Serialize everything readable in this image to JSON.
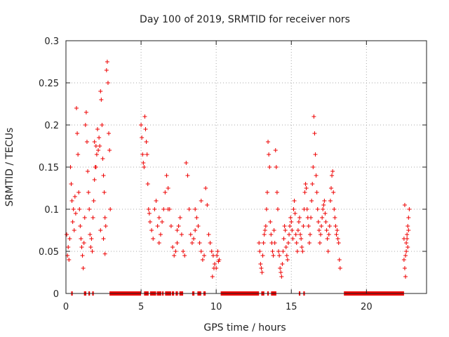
{
  "chart_data": {
    "type": "scatter",
    "title": "Day 100 of 2019, SRMTID for receiver nors",
    "xlabel": "GPS time / hours",
    "ylabel": "SRMTID / TECUs",
    "xlim": [
      0,
      24
    ],
    "ylim": [
      0,
      0.3
    ],
    "xticks": [
      0,
      5,
      10,
      15,
      20
    ],
    "xtick_labels": [
      "0",
      "5",
      "10",
      "15",
      "20"
    ],
    "yticks": [
      0,
      0.05,
      0.1,
      0.15,
      0.2,
      0.25,
      0.3
    ],
    "ytick_labels": [
      "0",
      "0.05",
      "0.1",
      "0.15",
      "0.2",
      "0.25",
      "0.3"
    ],
    "grid": true,
    "marker": "+",
    "marker_color": "#ee0000",
    "series": [
      {
        "name": "SRMTID",
        "color": "#ee0000",
        "points": [
          [
            0.05,
            0.07
          ],
          [
            0.1,
            0.045
          ],
          [
            0.15,
            0.055
          ],
          [
            0.2,
            0.04
          ],
          [
            0.25,
            0.065
          ],
          [
            0.3,
            0.15
          ],
          [
            0.35,
            0.13
          ],
          [
            0.4,
            0.11
          ],
          [
            0.45,
            0.085
          ],
          [
            0.5,
            0.1
          ],
          [
            0.55,
            0.075
          ],
          [
            0.6,
            0.115
          ],
          [
            0.65,
            0.095
          ],
          [
            0.7,
            0.22
          ],
          [
            0.75,
            0.19
          ],
          [
            0.8,
            0.165
          ],
          [
            0.85,
            0.12
          ],
          [
            0.9,
            0.1
          ],
          [
            0.95,
            0.08
          ],
          [
            1.0,
            0.065
          ],
          [
            1.05,
            0.055
          ],
          [
            1.1,
            0.045
          ],
          [
            1.15,
            0.03
          ],
          [
            1.2,
            0.06
          ],
          [
            1.25,
            0.09
          ],
          [
            1.3,
            0.2
          ],
          [
            1.35,
            0.215
          ],
          [
            1.4,
            0.18
          ],
          [
            1.45,
            0.145
          ],
          [
            1.5,
            0.12
          ],
          [
            1.55,
            0.1
          ],
          [
            1.6,
            0.07
          ],
          [
            1.65,
            0.055
          ],
          [
            1.7,
            0.065
          ],
          [
            1.75,
            0.05
          ],
          [
            1.8,
            0.09
          ],
          [
            1.85,
            0.11
          ],
          [
            1.9,
            0.135
          ],
          [
            1.95,
            0.15
          ],
          [
            2.0,
            0.175
          ],
          [
            2.05,
            0.165
          ],
          [
            2.1,
            0.195
          ],
          [
            2.15,
            0.17
          ],
          [
            2.2,
            0.185
          ],
          [
            2.25,
            0.175
          ],
          [
            2.3,
            0.24
          ],
          [
            2.35,
            0.23
          ],
          [
            2.4,
            0.2
          ],
          [
            2.45,
            0.16
          ],
          [
            2.5,
            0.14
          ],
          [
            2.55,
            0.12
          ],
          [
            2.6,
            0.09
          ],
          [
            2.65,
            0.08
          ],
          [
            2.7,
            0.265
          ],
          [
            2.75,
            0.275
          ],
          [
            2.8,
            0.25
          ],
          [
            2.85,
            0.19
          ],
          [
            2.9,
            0.17
          ],
          [
            2.95,
            0.1
          ],
          [
            2.3,
            0.075
          ],
          [
            2.5,
            0.065
          ],
          [
            2.6,
            0.047
          ],
          [
            1.9,
            0.18
          ],
          [
            2.0,
            0.15
          ],
          [
            5.0,
            0.2
          ],
          [
            5.05,
            0.185
          ],
          [
            5.1,
            0.165
          ],
          [
            5.15,
            0.155
          ],
          [
            5.2,
            0.15
          ],
          [
            5.25,
            0.21
          ],
          [
            5.3,
            0.195
          ],
          [
            5.35,
            0.18
          ],
          [
            5.4,
            0.165
          ],
          [
            5.45,
            0.13
          ],
          [
            5.5,
            0.1
          ],
          [
            5.55,
            0.095
          ],
          [
            5.6,
            0.085
          ],
          [
            5.7,
            0.075
          ],
          [
            5.8,
            0.065
          ],
          [
            5.9,
            0.1
          ],
          [
            6.0,
            0.11
          ],
          [
            6.1,
            0.08
          ],
          [
            6.2,
            0.09
          ],
          [
            6.3,
            0.07
          ],
          [
            6.4,
            0.085
          ],
          [
            6.5,
            0.1
          ],
          [
            6.6,
            0.12
          ],
          [
            6.7,
            0.14
          ],
          [
            6.8,
            0.125
          ],
          [
            6.9,
            0.1
          ],
          [
            7.0,
            0.08
          ],
          [
            7.1,
            0.055
          ],
          [
            7.2,
            0.045
          ],
          [
            7.3,
            0.05
          ],
          [
            7.4,
            0.06
          ],
          [
            7.5,
            0.08
          ],
          [
            7.6,
            0.09
          ],
          [
            7.7,
            0.07
          ],
          [
            7.8,
            0.05
          ],
          [
            7.9,
            0.045
          ],
          [
            8.0,
            0.155
          ],
          [
            8.1,
            0.14
          ],
          [
            8.2,
            0.1
          ],
          [
            8.3,
            0.07
          ],
          [
            8.4,
            0.06
          ],
          [
            8.5,
            0.065
          ],
          [
            8.6,
            0.075
          ],
          [
            8.7,
            0.09
          ],
          [
            8.8,
            0.08
          ],
          [
            8.9,
            0.06
          ],
          [
            9.0,
            0.05
          ],
          [
            9.1,
            0.04
          ],
          [
            9.2,
            0.045
          ],
          [
            9.3,
            0.125
          ],
          [
            9.4,
            0.105
          ],
          [
            9.5,
            0.07
          ],
          [
            9.6,
            0.06
          ],
          [
            9.7,
            0.05
          ],
          [
            9.8,
            0.045
          ],
          [
            9.9,
            0.035
          ],
          [
            10.0,
            0.03
          ],
          [
            10.05,
            0.045
          ],
          [
            10.1,
            0.05
          ],
          [
            10.15,
            0.038
          ],
          [
            10.2,
            0.04
          ],
          [
            9.75,
            0.02
          ],
          [
            9.85,
            0.03
          ],
          [
            6.2,
            0.06
          ],
          [
            6.8,
            0.1
          ],
          [
            7.4,
            0.075
          ],
          [
            8.6,
            0.1
          ],
          [
            9.0,
            0.11
          ],
          [
            12.85,
            0.06
          ],
          [
            12.9,
            0.05
          ],
          [
            12.95,
            0.035
          ],
          [
            13.0,
            0.03
          ],
          [
            13.05,
            0.025
          ],
          [
            13.1,
            0.045
          ],
          [
            13.15,
            0.06
          ],
          [
            13.2,
            0.07
          ],
          [
            13.25,
            0.075
          ],
          [
            13.3,
            0.08
          ],
          [
            13.35,
            0.1
          ],
          [
            13.4,
            0.12
          ],
          [
            13.45,
            0.18
          ],
          [
            13.5,
            0.165
          ],
          [
            13.55,
            0.15
          ],
          [
            13.6,
            0.085
          ],
          [
            13.65,
            0.07
          ],
          [
            13.7,
            0.06
          ],
          [
            13.75,
            0.05
          ],
          [
            13.8,
            0.045
          ],
          [
            13.85,
            0.075
          ],
          [
            13.9,
            0.06
          ],
          [
            13.95,
            0.17
          ],
          [
            14.0,
            0.15
          ],
          [
            14.05,
            0.12
          ],
          [
            14.1,
            0.1
          ],
          [
            14.15,
            0.05
          ],
          [
            14.2,
            0.045
          ],
          [
            14.25,
            0.03
          ],
          [
            14.3,
            0.025
          ],
          [
            14.35,
            0.02
          ],
          [
            14.4,
            0.035
          ],
          [
            14.45,
            0.05
          ],
          [
            14.5,
            0.065
          ],
          [
            14.55,
            0.08
          ],
          [
            14.6,
            0.075
          ],
          [
            14.65,
            0.055
          ],
          [
            14.7,
            0.045
          ],
          [
            14.75,
            0.04
          ],
          [
            14.8,
            0.06
          ],
          [
            14.85,
            0.07
          ],
          [
            14.9,
            0.08
          ],
          [
            14.95,
            0.09
          ],
          [
            15.0,
            0.085
          ],
          [
            15.05,
            0.075
          ],
          [
            15.1,
            0.065
          ],
          [
            15.15,
            0.1
          ],
          [
            15.2,
            0.11
          ],
          [
            15.25,
            0.095
          ],
          [
            15.3,
            0.07
          ],
          [
            15.35,
            0.06
          ],
          [
            15.4,
            0.05
          ],
          [
            15.45,
            0.075
          ],
          [
            15.5,
            0.085
          ],
          [
            15.55,
            0.09
          ],
          [
            15.6,
            0.07
          ],
          [
            15.65,
            0.065
          ],
          [
            15.7,
            0.055
          ],
          [
            15.75,
            0.05
          ],
          [
            15.8,
            0.08
          ],
          [
            15.85,
            0.1
          ],
          [
            15.9,
            0.12
          ],
          [
            15.95,
            0.13
          ],
          [
            16.0,
            0.125
          ],
          [
            16.05,
            0.1
          ],
          [
            16.1,
            0.09
          ],
          [
            16.15,
            0.08
          ],
          [
            16.2,
            0.06
          ],
          [
            16.25,
            0.07
          ],
          [
            16.3,
            0.09
          ],
          [
            16.35,
            0.11
          ],
          [
            16.4,
            0.13
          ],
          [
            16.45,
            0.15
          ],
          [
            16.5,
            0.21
          ],
          [
            16.55,
            0.19
          ],
          [
            16.6,
            0.165
          ],
          [
            16.65,
            0.14
          ],
          [
            16.7,
            0.12
          ],
          [
            16.75,
            0.1
          ],
          [
            16.8,
            0.085
          ],
          [
            16.85,
            0.075
          ],
          [
            16.9,
            0.06
          ],
          [
            16.95,
            0.07
          ],
          [
            17.0,
            0.08
          ],
          [
            17.05,
            0.09
          ],
          [
            17.1,
            0.1
          ],
          [
            17.15,
            0.105
          ],
          [
            17.2,
            0.11
          ],
          [
            17.25,
            0.095
          ],
          [
            17.3,
            0.085
          ],
          [
            17.35,
            0.075
          ],
          [
            17.4,
            0.065
          ],
          [
            17.45,
            0.05
          ],
          [
            17.5,
            0.07
          ],
          [
            17.55,
            0.08
          ],
          [
            17.6,
            0.11
          ],
          [
            17.65,
            0.125
          ],
          [
            17.7,
            0.14
          ],
          [
            17.75,
            0.145
          ],
          [
            17.8,
            0.12
          ],
          [
            17.85,
            0.1
          ],
          [
            17.9,
            0.09
          ],
          [
            17.95,
            0.08
          ],
          [
            18.0,
            0.07
          ],
          [
            18.05,
            0.075
          ],
          [
            18.1,
            0.065
          ],
          [
            18.15,
            0.06
          ],
          [
            18.2,
            0.04
          ],
          [
            18.25,
            0.03
          ],
          [
            22.5,
            0.04
          ],
          [
            22.55,
            0.03
          ],
          [
            22.6,
            0.045
          ],
          [
            22.65,
            0.06
          ],
          [
            22.7,
            0.07
          ],
          [
            22.75,
            0.08
          ],
          [
            22.8,
            0.09
          ],
          [
            22.85,
            0.1
          ],
          [
            22.55,
            0.105
          ],
          [
            22.6,
            0.02
          ],
          [
            22.65,
            0.05
          ],
          [
            22.7,
            0.065
          ],
          [
            22.75,
            0.055
          ],
          [
            22.8,
            0.075
          ],
          [
            22.5,
            0.065
          ]
        ]
      }
    ],
    "zero_bands": [
      [
        0.35,
        0.45
      ],
      [
        1.2,
        1.35
      ],
      [
        1.5,
        1.6
      ],
      [
        1.75,
        1.85
      ],
      [
        2.9,
        5.0
      ],
      [
        5.2,
        5.5
      ],
      [
        5.6,
        6.0
      ],
      [
        6.05,
        6.35
      ],
      [
        6.4,
        6.5
      ],
      [
        6.6,
        7.0
      ],
      [
        7.05,
        7.2
      ],
      [
        7.3,
        7.45
      ],
      [
        7.55,
        7.8
      ],
      [
        8.4,
        8.55
      ],
      [
        8.75,
        9.0
      ],
      [
        9.15,
        9.3
      ],
      [
        10.3,
        12.85
      ],
      [
        13.0,
        13.2
      ],
      [
        13.4,
        13.5
      ],
      [
        13.65,
        14.0
      ],
      [
        15.5,
        15.6
      ],
      [
        15.8,
        15.9
      ],
      [
        18.5,
        22.5
      ]
    ]
  }
}
